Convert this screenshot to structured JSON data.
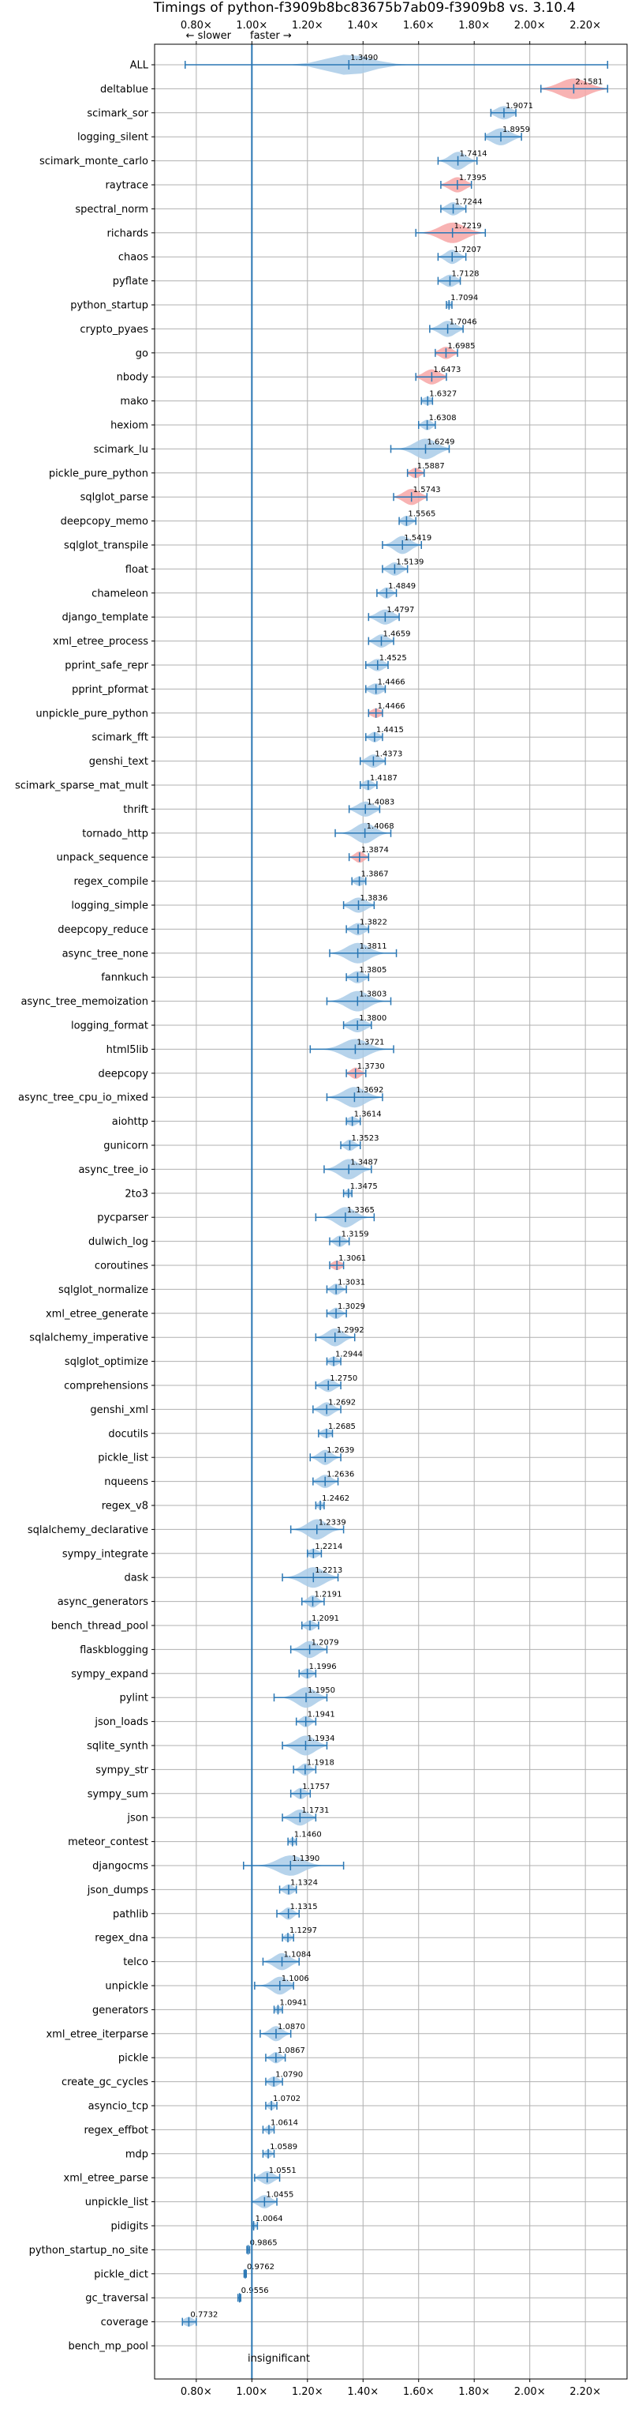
{
  "chart_data": {
    "type": "violin",
    "title": "Timings of python-f3909b8bc83675b7ab09-f3909b8 vs. 3.10.4",
    "direction_labels": {
      "slower": "← slower",
      "faster": "faster →"
    },
    "annotation": "insignificant",
    "xlim": [
      0.65,
      2.35
    ],
    "reference_x": 1.0,
    "grid": true,
    "x_ticks": [
      0.8,
      1.0,
      1.2,
      1.4,
      1.6,
      1.8,
      2.0,
      2.2
    ],
    "x_tick_labels": [
      "0.80×",
      "1.00×",
      "1.20×",
      "1.40×",
      "1.60×",
      "1.80×",
      "2.00×",
      "2.20×"
    ],
    "colors": {
      "faster": "#a9cbe8",
      "slower": "#f7a6a6",
      "line": "#2a77b4",
      "grid": "#b0b0b0"
    },
    "benchmarks": [
      {
        "name": "ALL",
        "value": 1.349,
        "label": "1.3490",
        "lo": 0.76,
        "hi": 2.28,
        "w": 0.14,
        "color": "faster"
      },
      {
        "name": "deltablue",
        "value": 2.1581,
        "label": "2.1581",
        "lo": 2.04,
        "hi": 2.28,
        "w": 0.09,
        "color": "slower"
      },
      {
        "name": "scimark_sor",
        "value": 1.9071,
        "label": "1.9071",
        "lo": 1.86,
        "hi": 1.95,
        "w": 0.05,
        "color": "faster"
      },
      {
        "name": "logging_silent",
        "value": 1.8959,
        "label": "1.8959",
        "lo": 1.84,
        "hi": 1.97,
        "w": 0.06,
        "color": "faster"
      },
      {
        "name": "scimark_monte_carlo",
        "value": 1.7414,
        "label": "1.7414",
        "lo": 1.67,
        "hi": 1.81,
        "w": 0.05,
        "color": "faster"
      },
      {
        "name": "raytrace",
        "value": 1.7395,
        "label": "1.7395",
        "lo": 1.68,
        "hi": 1.79,
        "w": 0.05,
        "color": "slower"
      },
      {
        "name": "spectral_norm",
        "value": 1.7244,
        "label": "1.7244",
        "lo": 1.68,
        "hi": 1.77,
        "w": 0.04,
        "color": "faster"
      },
      {
        "name": "richards",
        "value": 1.7219,
        "label": "1.7219",
        "lo": 1.59,
        "hi": 1.84,
        "w": 0.08,
        "color": "slower"
      },
      {
        "name": "chaos",
        "value": 1.7207,
        "label": "1.7207",
        "lo": 1.67,
        "hi": 1.77,
        "w": 0.04,
        "color": "faster"
      },
      {
        "name": "pyflate",
        "value": 1.7128,
        "label": "1.7128",
        "lo": 1.67,
        "hi": 1.75,
        "w": 0.04,
        "color": "faster"
      },
      {
        "name": "python_startup",
        "value": 1.7094,
        "label": "1.7094",
        "lo": 1.7,
        "hi": 1.72,
        "w": 0.02,
        "color": "faster"
      },
      {
        "name": "crypto_pyaes",
        "value": 1.7046,
        "label": "1.7046",
        "lo": 1.64,
        "hi": 1.76,
        "w": 0.05,
        "color": "faster"
      },
      {
        "name": "go",
        "value": 1.6985,
        "label": "1.6985",
        "lo": 1.66,
        "hi": 1.74,
        "w": 0.04,
        "color": "slower"
      },
      {
        "name": "nbody",
        "value": 1.6473,
        "label": "1.6473",
        "lo": 1.59,
        "hi": 1.7,
        "w": 0.05,
        "color": "slower"
      },
      {
        "name": "mako",
        "value": 1.6327,
        "label": "1.6327",
        "lo": 1.61,
        "hi": 1.65,
        "w": 0.03,
        "color": "faster"
      },
      {
        "name": "hexiom",
        "value": 1.6308,
        "label": "1.6308",
        "lo": 1.6,
        "hi": 1.66,
        "w": 0.03,
        "color": "faster"
      },
      {
        "name": "scimark_lu",
        "value": 1.6249,
        "label": "1.6249",
        "lo": 1.5,
        "hi": 1.71,
        "w": 0.07,
        "color": "faster"
      },
      {
        "name": "pickle_pure_python",
        "value": 1.5887,
        "label": "1.5887",
        "lo": 1.56,
        "hi": 1.62,
        "w": 0.03,
        "color": "slower"
      },
      {
        "name": "sqlglot_parse",
        "value": 1.5743,
        "label": "1.5743",
        "lo": 1.51,
        "hi": 1.63,
        "w": 0.05,
        "color": "slower"
      },
      {
        "name": "deepcopy_memo",
        "value": 1.5565,
        "label": "1.5565",
        "lo": 1.53,
        "hi": 1.59,
        "w": 0.03,
        "color": "faster"
      },
      {
        "name": "sqlglot_transpile",
        "value": 1.5419,
        "label": "1.5419",
        "lo": 1.47,
        "hi": 1.61,
        "w": 0.05,
        "color": "faster"
      },
      {
        "name": "float",
        "value": 1.5139,
        "label": "1.5139",
        "lo": 1.47,
        "hi": 1.56,
        "w": 0.04,
        "color": "faster"
      },
      {
        "name": "chameleon",
        "value": 1.4849,
        "label": "1.4849",
        "lo": 1.45,
        "hi": 1.52,
        "w": 0.03,
        "color": "faster"
      },
      {
        "name": "django_template",
        "value": 1.4797,
        "label": "1.4797",
        "lo": 1.42,
        "hi": 1.53,
        "w": 0.05,
        "color": "faster"
      },
      {
        "name": "xml_etree_process",
        "value": 1.4659,
        "label": "1.4659",
        "lo": 1.42,
        "hi": 1.51,
        "w": 0.04,
        "color": "faster"
      },
      {
        "name": "pprint_safe_repr",
        "value": 1.4525,
        "label": "1.4525",
        "lo": 1.41,
        "hi": 1.49,
        "w": 0.04,
        "color": "faster"
      },
      {
        "name": "pprint_pformat",
        "value": 1.4466,
        "label": "1.4466",
        "lo": 1.41,
        "hi": 1.48,
        "w": 0.04,
        "color": "faster"
      },
      {
        "name": "unpickle_pure_python",
        "value": 1.4466,
        "label": "1.4466",
        "lo": 1.42,
        "hi": 1.47,
        "w": 0.03,
        "color": "slower"
      },
      {
        "name": "scimark_fft",
        "value": 1.4415,
        "label": "1.4415",
        "lo": 1.41,
        "hi": 1.47,
        "w": 0.03,
        "color": "faster"
      },
      {
        "name": "genshi_text",
        "value": 1.4373,
        "label": "1.4373",
        "lo": 1.39,
        "hi": 1.48,
        "w": 0.04,
        "color": "faster"
      },
      {
        "name": "scimark_sparse_mat_mult",
        "value": 1.4187,
        "label": "1.4187",
        "lo": 1.39,
        "hi": 1.45,
        "w": 0.03,
        "color": "faster"
      },
      {
        "name": "thrift",
        "value": 1.4083,
        "label": "1.4083",
        "lo": 1.35,
        "hi": 1.46,
        "w": 0.05,
        "color": "faster"
      },
      {
        "name": "tornado_http",
        "value": 1.4068,
        "label": "1.4068",
        "lo": 1.3,
        "hi": 1.5,
        "w": 0.06,
        "color": "faster"
      },
      {
        "name": "unpack_sequence",
        "value": 1.3874,
        "label": "1.3874",
        "lo": 1.35,
        "hi": 1.42,
        "w": 0.03,
        "color": "slower"
      },
      {
        "name": "regex_compile",
        "value": 1.3867,
        "label": "1.3867",
        "lo": 1.36,
        "hi": 1.41,
        "w": 0.03,
        "color": "faster"
      },
      {
        "name": "logging_simple",
        "value": 1.3836,
        "label": "1.3836",
        "lo": 1.33,
        "hi": 1.44,
        "w": 0.05,
        "color": "faster"
      },
      {
        "name": "deepcopy_reduce",
        "value": 1.3822,
        "label": "1.3822",
        "lo": 1.34,
        "hi": 1.42,
        "w": 0.04,
        "color": "faster"
      },
      {
        "name": "async_tree_none",
        "value": 1.3811,
        "label": "1.3811",
        "lo": 1.28,
        "hi": 1.52,
        "w": 0.07,
        "color": "faster"
      },
      {
        "name": "fannkuch",
        "value": 1.3805,
        "label": "1.3805",
        "lo": 1.34,
        "hi": 1.42,
        "w": 0.04,
        "color": "faster"
      },
      {
        "name": "async_tree_memoization",
        "value": 1.3803,
        "label": "1.3803",
        "lo": 1.27,
        "hi": 1.5,
        "w": 0.07,
        "color": "faster"
      },
      {
        "name": "logging_format",
        "value": 1.38,
        "label": "1.3800",
        "lo": 1.33,
        "hi": 1.43,
        "w": 0.05,
        "color": "faster"
      },
      {
        "name": "html5lib",
        "value": 1.3721,
        "label": "1.3721",
        "lo": 1.21,
        "hi": 1.51,
        "w": 0.08,
        "color": "faster"
      },
      {
        "name": "deepcopy",
        "value": 1.373,
        "label": "1.3730",
        "lo": 1.34,
        "hi": 1.41,
        "w": 0.03,
        "color": "slower"
      },
      {
        "name": "async_tree_cpu_io_mixed",
        "value": 1.3692,
        "label": "1.3692",
        "lo": 1.27,
        "hi": 1.47,
        "w": 0.07,
        "color": "faster"
      },
      {
        "name": "aiohttp",
        "value": 1.3614,
        "label": "1.3614",
        "lo": 1.34,
        "hi": 1.39,
        "w": 0.03,
        "color": "faster"
      },
      {
        "name": "gunicorn",
        "value": 1.3523,
        "label": "1.3523",
        "lo": 1.32,
        "hi": 1.39,
        "w": 0.03,
        "color": "faster"
      },
      {
        "name": "async_tree_io",
        "value": 1.3487,
        "label": "1.3487",
        "lo": 1.26,
        "hi": 1.43,
        "w": 0.06,
        "color": "faster"
      },
      {
        "name": "2to3",
        "value": 1.3475,
        "label": "1.3475",
        "lo": 1.33,
        "hi": 1.36,
        "w": 0.02,
        "color": "faster"
      },
      {
        "name": "pycparser",
        "value": 1.3365,
        "label": "1.3365",
        "lo": 1.23,
        "hi": 1.44,
        "w": 0.06,
        "color": "faster"
      },
      {
        "name": "dulwich_log",
        "value": 1.3159,
        "label": "1.3159",
        "lo": 1.28,
        "hi": 1.35,
        "w": 0.03,
        "color": "faster"
      },
      {
        "name": "coroutines",
        "value": 1.3061,
        "label": "1.3061",
        "lo": 1.28,
        "hi": 1.33,
        "w": 0.03,
        "color": "slower"
      },
      {
        "name": "sqlglot_normalize",
        "value": 1.3031,
        "label": "1.3031",
        "lo": 1.27,
        "hi": 1.34,
        "w": 0.03,
        "color": "faster"
      },
      {
        "name": "xml_etree_generate",
        "value": 1.3029,
        "label": "1.3029",
        "lo": 1.27,
        "hi": 1.34,
        "w": 0.03,
        "color": "faster"
      },
      {
        "name": "sqlalchemy_imperative",
        "value": 1.2992,
        "label": "1.2992",
        "lo": 1.23,
        "hi": 1.37,
        "w": 0.05,
        "color": "faster"
      },
      {
        "name": "sqlglot_optimize",
        "value": 1.2944,
        "label": "1.2944",
        "lo": 1.27,
        "hi": 1.32,
        "w": 0.03,
        "color": "faster"
      },
      {
        "name": "comprehensions",
        "value": 1.275,
        "label": "1.2750",
        "lo": 1.23,
        "hi": 1.32,
        "w": 0.04,
        "color": "faster"
      },
      {
        "name": "genshi_xml",
        "value": 1.2692,
        "label": "1.2692",
        "lo": 1.22,
        "hi": 1.32,
        "w": 0.04,
        "color": "faster"
      },
      {
        "name": "docutils",
        "value": 1.2685,
        "label": "1.2685",
        "lo": 1.24,
        "hi": 1.29,
        "w": 0.03,
        "color": "faster"
      },
      {
        "name": "pickle_list",
        "value": 1.2639,
        "label": "1.2639",
        "lo": 1.21,
        "hi": 1.32,
        "w": 0.04,
        "color": "faster"
      },
      {
        "name": "nqueens",
        "value": 1.2636,
        "label": "1.2636",
        "lo": 1.22,
        "hi": 1.31,
        "w": 0.04,
        "color": "faster"
      },
      {
        "name": "regex_v8",
        "value": 1.2462,
        "label": "1.2462",
        "lo": 1.23,
        "hi": 1.26,
        "w": 0.02,
        "color": "faster"
      },
      {
        "name": "sqlalchemy_declarative",
        "value": 1.2339,
        "label": "1.2339",
        "lo": 1.14,
        "hi": 1.33,
        "w": 0.06,
        "color": "faster"
      },
      {
        "name": "sympy_integrate",
        "value": 1.2214,
        "label": "1.2214",
        "lo": 1.2,
        "hi": 1.25,
        "w": 0.03,
        "color": "faster"
      },
      {
        "name": "dask",
        "value": 1.2213,
        "label": "1.2213",
        "lo": 1.11,
        "hi": 1.31,
        "w": 0.07,
        "color": "faster"
      },
      {
        "name": "async_generators",
        "value": 1.2191,
        "label": "1.2191",
        "lo": 1.18,
        "hi": 1.26,
        "w": 0.03,
        "color": "faster"
      },
      {
        "name": "bench_thread_pool",
        "value": 1.2091,
        "label": "1.2091",
        "lo": 1.18,
        "hi": 1.24,
        "w": 0.03,
        "color": "faster"
      },
      {
        "name": "flaskblogging",
        "value": 1.2079,
        "label": "1.2079",
        "lo": 1.14,
        "hi": 1.27,
        "w": 0.05,
        "color": "faster"
      },
      {
        "name": "sympy_expand",
        "value": 1.1996,
        "label": "1.1996",
        "lo": 1.17,
        "hi": 1.23,
        "w": 0.03,
        "color": "faster"
      },
      {
        "name": "pylint",
        "value": 1.195,
        "label": "1.1950",
        "lo": 1.08,
        "hi": 1.27,
        "w": 0.06,
        "color": "faster"
      },
      {
        "name": "json_loads",
        "value": 1.1941,
        "label": "1.1941",
        "lo": 1.16,
        "hi": 1.23,
        "w": 0.03,
        "color": "faster"
      },
      {
        "name": "sqlite_synth",
        "value": 1.1934,
        "label": "1.1934",
        "lo": 1.11,
        "hi": 1.27,
        "w": 0.06,
        "color": "faster"
      },
      {
        "name": "sympy_str",
        "value": 1.1918,
        "label": "1.1918",
        "lo": 1.15,
        "hi": 1.23,
        "w": 0.03,
        "color": "faster"
      },
      {
        "name": "sympy_sum",
        "value": 1.1757,
        "label": "1.1757",
        "lo": 1.14,
        "hi": 1.21,
        "w": 0.03,
        "color": "faster"
      },
      {
        "name": "json",
        "value": 1.1731,
        "label": "1.1731",
        "lo": 1.11,
        "hi": 1.23,
        "w": 0.05,
        "color": "faster"
      },
      {
        "name": "meteor_contest",
        "value": 1.146,
        "label": "1.1460",
        "lo": 1.13,
        "hi": 1.16,
        "w": 0.02,
        "color": "faster"
      },
      {
        "name": "djangocms",
        "value": 1.139,
        "label": "1.1390",
        "lo": 0.97,
        "hi": 1.33,
        "w": 0.08,
        "color": "faster"
      },
      {
        "name": "json_dumps",
        "value": 1.1324,
        "label": "1.1324",
        "lo": 1.1,
        "hi": 1.16,
        "w": 0.03,
        "color": "faster"
      },
      {
        "name": "pathlib",
        "value": 1.1315,
        "label": "1.1315",
        "lo": 1.09,
        "hi": 1.17,
        "w": 0.03,
        "color": "faster"
      },
      {
        "name": "regex_dna",
        "value": 1.1297,
        "label": "1.1297",
        "lo": 1.11,
        "hi": 1.15,
        "w": 0.02,
        "color": "faster"
      },
      {
        "name": "telco",
        "value": 1.1084,
        "label": "1.1084",
        "lo": 1.04,
        "hi": 1.17,
        "w": 0.05,
        "color": "faster"
      },
      {
        "name": "unpickle",
        "value": 1.1006,
        "label": "1.1006",
        "lo": 1.01,
        "hi": 1.15,
        "w": 0.05,
        "color": "faster"
      },
      {
        "name": "generators",
        "value": 1.0941,
        "label": "1.0941",
        "lo": 1.08,
        "hi": 1.11,
        "w": 0.02,
        "color": "faster"
      },
      {
        "name": "xml_etree_iterparse",
        "value": 1.087,
        "label": "1.0870",
        "lo": 1.03,
        "hi": 1.14,
        "w": 0.04,
        "color": "faster"
      },
      {
        "name": "pickle",
        "value": 1.0867,
        "label": "1.0867",
        "lo": 1.05,
        "hi": 1.12,
        "w": 0.03,
        "color": "faster"
      },
      {
        "name": "create_gc_cycles",
        "value": 1.079,
        "label": "1.0790",
        "lo": 1.05,
        "hi": 1.11,
        "w": 0.03,
        "color": "faster"
      },
      {
        "name": "asyncio_tcp",
        "value": 1.0702,
        "label": "1.0702",
        "lo": 1.05,
        "hi": 1.09,
        "w": 0.02,
        "color": "faster"
      },
      {
        "name": "regex_effbot",
        "value": 1.0614,
        "label": "1.0614",
        "lo": 1.04,
        "hi": 1.08,
        "w": 0.02,
        "color": "faster"
      },
      {
        "name": "mdp",
        "value": 1.0589,
        "label": "1.0589",
        "lo": 1.04,
        "hi": 1.08,
        "w": 0.02,
        "color": "faster"
      },
      {
        "name": "xml_etree_parse",
        "value": 1.0551,
        "label": "1.0551",
        "lo": 1.01,
        "hi": 1.1,
        "w": 0.04,
        "color": "faster"
      },
      {
        "name": "unpickle_list",
        "value": 1.0455,
        "label": "1.0455",
        "lo": 1.0,
        "hi": 1.09,
        "w": 0.04,
        "color": "faster"
      },
      {
        "name": "pidigits",
        "value": 1.0064,
        "label": "1.0064",
        "lo": 1.0,
        "hi": 1.02,
        "w": 0.015,
        "color": "faster"
      },
      {
        "name": "python_startup_no_site",
        "value": 0.9865,
        "label": "0.9865",
        "lo": 0.982,
        "hi": 0.992,
        "w": 0.01,
        "color": "faster"
      },
      {
        "name": "pickle_dict",
        "value": 0.9762,
        "label": "0.9762",
        "lo": 0.972,
        "hi": 0.98,
        "w": 0.008,
        "color": "faster"
      },
      {
        "name": "gc_traversal",
        "value": 0.9556,
        "label": "0.9556",
        "lo": 0.95,
        "hi": 0.96,
        "w": 0.01,
        "color": "faster"
      },
      {
        "name": "coverage",
        "value": 0.7732,
        "label": "0.7732",
        "lo": 0.75,
        "hi": 0.8,
        "w": 0.03,
        "color": "faster"
      },
      {
        "name": "bench_mp_pool",
        "value": null,
        "label": "",
        "lo": null,
        "hi": null,
        "w": 0,
        "color": "faster"
      }
    ]
  }
}
